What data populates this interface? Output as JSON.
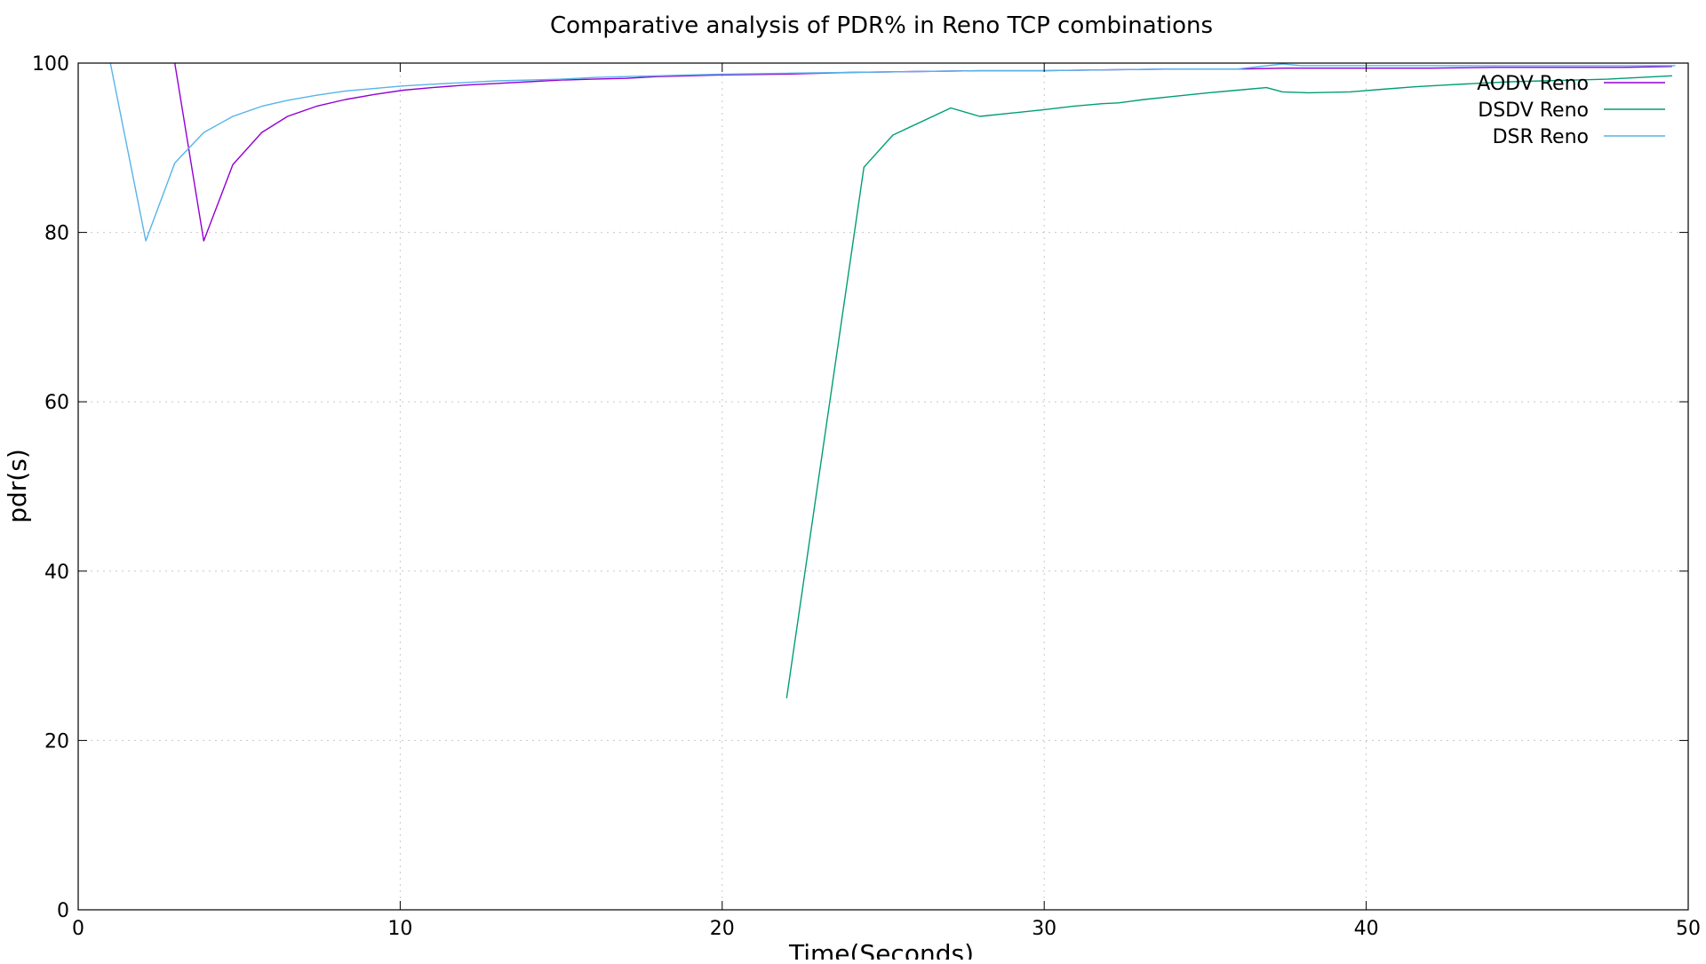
{
  "chart_data": {
    "type": "line",
    "title": "Comparative analysis of PDR% in Reno TCP combinations",
    "xlabel": "Time(Seconds)",
    "ylabel": "pdr(s)",
    "xlim": [
      0,
      50
    ],
    "ylim": [
      0,
      100
    ],
    "xticks": [
      0,
      10,
      20,
      30,
      40,
      50
    ],
    "yticks": [
      0,
      20,
      40,
      60,
      80,
      100
    ],
    "grid": true,
    "legend_position": "top-right",
    "series": [
      {
        "name": "AODV Reno",
        "color": "#9400d3",
        "x": [
          3.0,
          3.9,
          4.8,
          5.7,
          6.5,
          7.4,
          8.3,
          9.2,
          10.1,
          11.0,
          12.0,
          13.0,
          14.0,
          15.0,
          16.0,
          17.0,
          18.0,
          19.0,
          20.0,
          22.0,
          24.0,
          26.0,
          28.0,
          30.0,
          32.0,
          34.0,
          36.0,
          37.5,
          38.0,
          40.0,
          42.0,
          44.0,
          46.0,
          48.0,
          49.5
        ],
        "y": [
          100,
          79,
          88,
          91.8,
          93.7,
          94.9,
          95.7,
          96.3,
          96.8,
          97.1,
          97.4,
          97.6,
          97.8,
          98.0,
          98.1,
          98.2,
          98.4,
          98.5,
          98.6,
          98.7,
          98.9,
          99.0,
          99.1,
          99.1,
          99.2,
          99.3,
          99.3,
          99.4,
          99.4,
          99.4,
          99.4,
          99.5,
          99.5,
          99.5,
          99.6
        ]
      },
      {
        "name": "DSDV Reno",
        "color": "#009e73",
        "x": [
          22.0,
          24.4,
          25.3,
          27.1,
          28.0,
          29.0,
          30.0,
          30.9,
          31.8,
          32.3,
          33.1,
          34.1,
          35.1,
          36.0,
          36.9,
          37.4,
          38.2,
          39.5,
          40.5,
          41.5,
          42.4,
          43.4,
          44.5,
          45.5,
          46.5,
          47.5,
          48.5,
          49.5
        ],
        "y": [
          25,
          87.7,
          91.5,
          94.7,
          93.7,
          94.1,
          94.5,
          94.9,
          95.2,
          95.3,
          95.7,
          96.1,
          96.5,
          96.8,
          97.1,
          96.6,
          96.5,
          96.6,
          96.9,
          97.2,
          97.4,
          97.6,
          97.8,
          97.9,
          98.0,
          98.1,
          98.3,
          98.5
        ]
      },
      {
        "name": "DSR Reno",
        "color": "#56b4e9",
        "x": [
          1.0,
          2.1,
          3.0,
          3.9,
          4.8,
          5.7,
          6.5,
          7.4,
          8.3,
          9.2,
          10.1,
          11.0,
          12.0,
          13.0,
          14.0,
          15.0,
          16.0,
          17.0,
          18.0,
          19.0,
          20.0,
          22.0,
          24.0,
          26.0,
          28.0,
          30.0,
          32.0,
          34.0,
          36.0,
          37.4,
          38.0,
          40.0,
          42.0,
          44.0,
          46.0,
          48.0,
          49.6
        ],
        "y": [
          100,
          79,
          88.2,
          91.8,
          93.7,
          94.9,
          95.6,
          96.2,
          96.7,
          97.0,
          97.3,
          97.5,
          97.7,
          97.9,
          98.0,
          98.1,
          98.3,
          98.4,
          98.5,
          98.6,
          98.7,
          98.8,
          98.9,
          99.0,
          99.1,
          99.1,
          99.2,
          99.3,
          99.3,
          99.9,
          99.7,
          99.7,
          99.7,
          99.7,
          99.7,
          99.7,
          99.7
        ]
      }
    ]
  }
}
